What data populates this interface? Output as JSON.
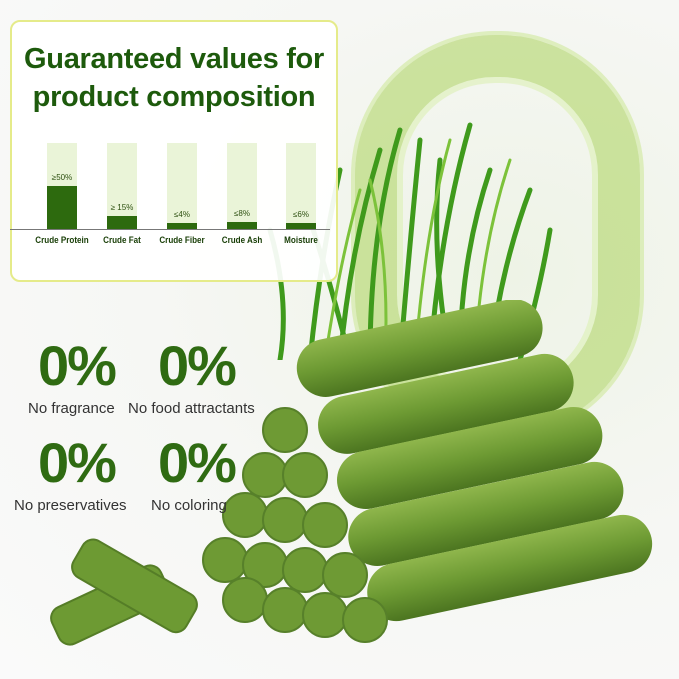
{
  "panel": {
    "title_line1": "Guaranteed values for",
    "title_line2": "product composition"
  },
  "chart_data": {
    "type": "bar",
    "categories": [
      "Crude Protein",
      "Crude Fat",
      "Crude Fiber",
      "Crude Ash",
      "Moisture"
    ],
    "values": [
      50,
      15,
      4,
      8,
      6
    ],
    "value_labels": [
      "≥50%",
      "≥ 15%",
      "≤4%",
      "≤8%",
      "≤6%"
    ],
    "ylim": [
      0,
      100
    ]
  },
  "claims": [
    {
      "value": "0%",
      "label": "No fragrance"
    },
    {
      "value": "0%",
      "label": "No food attractants"
    },
    {
      "value": "0%",
      "label": "No preservatives"
    },
    {
      "value": "0%",
      "label": "No coloring"
    }
  ],
  "colors": {
    "brand_green": "#2f6b12",
    "bar_fill": "#2d6a0e",
    "bar_bg": "#eaf4d8",
    "panel_border": "#e5eb8a"
  }
}
